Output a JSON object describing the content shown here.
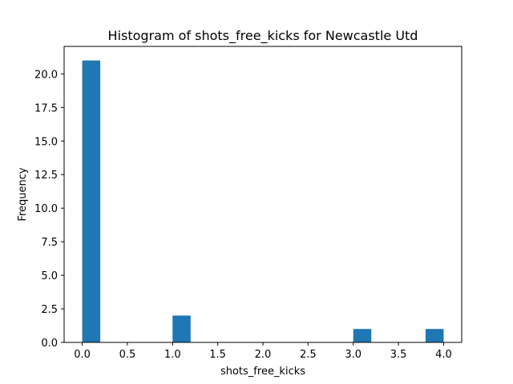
{
  "chart_data": {
    "type": "bar",
    "title": "Histogram of shots_free_kicks for Newcastle Utd",
    "xlabel": "shots_free_kicks",
    "ylabel": "Frequency",
    "xlim": [
      -0.2,
      4.2
    ],
    "ylim": [
      0,
      22.05
    ],
    "grid": false,
    "bin_width": 0.2,
    "bins": [
      {
        "start": 0.0,
        "value": 21
      },
      {
        "start": 1.0,
        "value": 2
      },
      {
        "start": 3.0,
        "value": 1
      },
      {
        "start": 3.8,
        "value": 1
      }
    ],
    "x_ticks": [
      {
        "value": 0.0,
        "label": "0.0"
      },
      {
        "value": 0.5,
        "label": "0.5"
      },
      {
        "value": 1.0,
        "label": "1.0"
      },
      {
        "value": 1.5,
        "label": "1.5"
      },
      {
        "value": 2.0,
        "label": "2.0"
      },
      {
        "value": 2.5,
        "label": "2.5"
      },
      {
        "value": 3.0,
        "label": "3.0"
      },
      {
        "value": 3.5,
        "label": "3.5"
      },
      {
        "value": 4.0,
        "label": "4.0"
      }
    ],
    "y_ticks": [
      {
        "value": 0.0,
        "label": "0.0"
      },
      {
        "value": 2.5,
        "label": "2.5"
      },
      {
        "value": 5.0,
        "label": "5.0"
      },
      {
        "value": 7.5,
        "label": "7.5"
      },
      {
        "value": 10.0,
        "label": "10.0"
      },
      {
        "value": 12.5,
        "label": "12.5"
      },
      {
        "value": 15.0,
        "label": "15.0"
      },
      {
        "value": 17.5,
        "label": "17.5"
      },
      {
        "value": 20.0,
        "label": "20.0"
      }
    ],
    "bar_color": "#1f77b4"
  }
}
